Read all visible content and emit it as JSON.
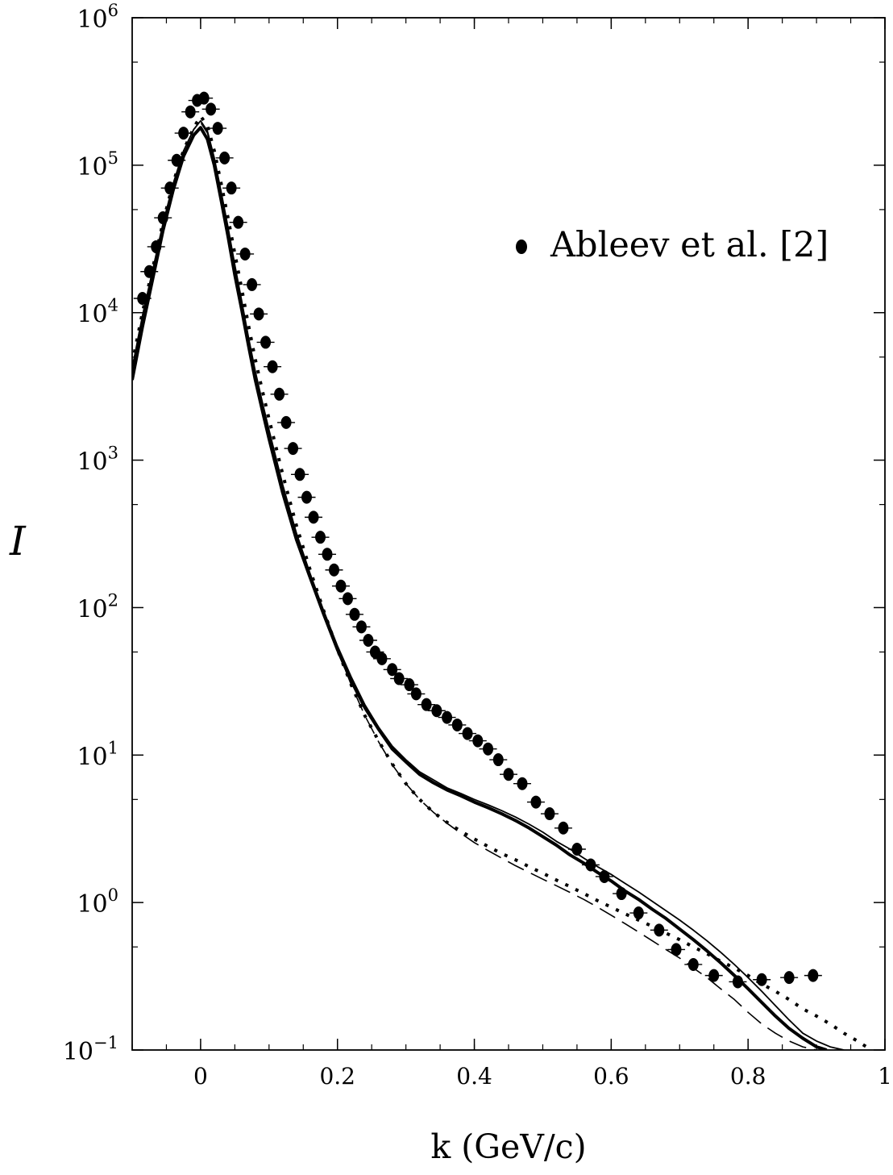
{
  "chart_data": {
    "type": "line",
    "title": "",
    "xlabel": "k (GeV/c)",
    "ylabel": "I",
    "xlim": [
      -0.1,
      1.0
    ],
    "ylim": [
      0.1,
      1000000
    ],
    "yscale": "log",
    "x_ticks": [
      {
        "value": 0,
        "label": "0"
      },
      {
        "value": 0.2,
        "label": "0.2"
      },
      {
        "value": 0.4,
        "label": "0.4"
      },
      {
        "value": 0.6,
        "label": "0.6"
      },
      {
        "value": 0.8,
        "label": "0.8"
      },
      {
        "value": 1.0,
        "label": "1"
      }
    ],
    "y_ticks": [
      {
        "exp": -1,
        "base": "10",
        "sup": "−1"
      },
      {
        "exp": 0,
        "base": "10",
        "sup": "0"
      },
      {
        "exp": 1,
        "base": "10",
        "sup": "1"
      },
      {
        "exp": 2,
        "base": "10",
        "sup": "2"
      },
      {
        "exp": 3,
        "base": "10",
        "sup": "3"
      },
      {
        "exp": 4,
        "base": "10",
        "sup": "4"
      },
      {
        "exp": 5,
        "base": "10",
        "sup": "5"
      },
      {
        "exp": 6,
        "base": "10",
        "sup": "6"
      }
    ],
    "legend": {
      "position": "top-right",
      "entries": [
        {
          "label": "Ableev et al. [2]",
          "marker": "filled-circle"
        }
      ]
    },
    "grid": false,
    "series": [
      {
        "name": "Ableev et al. [2]",
        "style": "points",
        "x": [
          -0.085,
          -0.075,
          -0.065,
          -0.055,
          -0.045,
          -0.035,
          -0.025,
          -0.015,
          -0.005,
          0.005,
          0.015,
          0.025,
          0.035,
          0.045,
          0.055,
          0.065,
          0.075,
          0.085,
          0.095,
          0.105,
          0.115,
          0.125,
          0.135,
          0.145,
          0.155,
          0.165,
          0.175,
          0.185,
          0.195,
          0.205,
          0.215,
          0.225,
          0.235,
          0.245,
          0.255,
          0.265,
          0.28,
          0.29,
          0.305,
          0.315,
          0.33,
          0.345,
          0.36,
          0.375,
          0.39,
          0.405,
          0.42,
          0.435,
          0.45,
          0.47,
          0.49,
          0.51,
          0.53,
          0.55,
          0.57,
          0.59,
          0.615,
          0.64,
          0.67,
          0.695,
          0.72,
          0.75,
          0.785,
          0.82,
          0.86,
          0.895
        ],
        "y": [
          12500,
          19000,
          28000,
          44000,
          70000,
          108000,
          165000,
          230000,
          275000,
          285000,
          240000,
          178000,
          112000,
          70000,
          41000,
          25000,
          15500,
          9800,
          6300,
          4300,
          2800,
          1800,
          1200,
          800,
          560,
          410,
          300,
          230,
          180,
          140,
          115,
          90,
          74,
          60,
          50,
          45,
          38,
          33,
          30,
          26,
          22,
          20,
          18,
          16,
          14,
          12.5,
          11,
          9.3,
          7.4,
          6.4,
          4.8,
          4.0,
          3.2,
          2.3,
          1.8,
          1.5,
          1.15,
          0.85,
          0.65,
          0.48,
          0.38,
          0.32,
          0.29,
          0.3,
          0.31,
          0.32
        ]
      },
      {
        "name": "",
        "style": "thick-solid",
        "x": [
          -0.1,
          -0.085,
          -0.07,
          -0.055,
          -0.04,
          -0.025,
          -0.01,
          0,
          0.01,
          0.02,
          0.03,
          0.04,
          0.05,
          0.06,
          0.07,
          0.08,
          0.09,
          0.1,
          0.12,
          0.14,
          0.16,
          0.18,
          0.2,
          0.22,
          0.24,
          0.26,
          0.28,
          0.3,
          0.32,
          0.34,
          0.36,
          0.38,
          0.4,
          0.42,
          0.44,
          0.46,
          0.48,
          0.5,
          0.52,
          0.54,
          0.56,
          0.58,
          0.6,
          0.62,
          0.64,
          0.66,
          0.68,
          0.7,
          0.72,
          0.74,
          0.76,
          0.78,
          0.8,
          0.82,
          0.84,
          0.86,
          0.88,
          0.9,
          0.915
        ],
        "y": [
          3500,
          8000,
          17000,
          36000,
          68000,
          115000,
          160000,
          180000,
          150000,
          100000,
          58000,
          33000,
          18000,
          10500,
          6000,
          3500,
          2200,
          1400,
          600,
          290,
          160,
          90,
          52,
          32,
          21,
          15,
          11,
          9.0,
          7.4,
          6.5,
          5.8,
          5.3,
          4.8,
          4.4,
          4.0,
          3.6,
          3.2,
          2.8,
          2.45,
          2.1,
          1.85,
          1.6,
          1.4,
          1.2,
          1.05,
          0.9,
          0.78,
          0.66,
          0.56,
          0.47,
          0.39,
          0.32,
          0.26,
          0.21,
          0.17,
          0.14,
          0.12,
          0.105,
          0.1
        ]
      },
      {
        "name": "",
        "style": "thin-solid",
        "x": [
          -0.1,
          -0.085,
          -0.07,
          -0.055,
          -0.04,
          -0.025,
          -0.01,
          0,
          0.01,
          0.02,
          0.03,
          0.04,
          0.05,
          0.06,
          0.07,
          0.08,
          0.09,
          0.1,
          0.12,
          0.14,
          0.16,
          0.18,
          0.2,
          0.22,
          0.24,
          0.26,
          0.28,
          0.3,
          0.32,
          0.34,
          0.36,
          0.38,
          0.4,
          0.42,
          0.44,
          0.46,
          0.48,
          0.5,
          0.52,
          0.54,
          0.56,
          0.58,
          0.6,
          0.62,
          0.64,
          0.66,
          0.68,
          0.7,
          0.72,
          0.74,
          0.76,
          0.78,
          0.8,
          0.82,
          0.84,
          0.86,
          0.88,
          0.9,
          0.92,
          0.94
        ],
        "y": [
          4200,
          9500,
          19500,
          40000,
          75000,
          125000,
          175000,
          200000,
          170000,
          112000,
          66000,
          38000,
          21000,
          12000,
          6800,
          4000,
          2500,
          1600,
          680,
          320,
          170,
          95,
          55,
          34,
          22,
          15.5,
          11.5,
          9.3,
          7.7,
          6.8,
          6.0,
          5.5,
          5.0,
          4.6,
          4.2,
          3.8,
          3.4,
          3.0,
          2.6,
          2.3,
          2.0,
          1.75,
          1.55,
          1.35,
          1.18,
          1.02,
          0.88,
          0.76,
          0.65,
          0.55,
          0.46,
          0.38,
          0.31,
          0.25,
          0.2,
          0.16,
          0.13,
          0.115,
          0.105,
          0.1
        ]
      },
      {
        "name": "",
        "style": "dotted",
        "x": [
          -0.1,
          -0.085,
          -0.07,
          -0.055,
          -0.04,
          -0.025,
          -0.01,
          0,
          0.01,
          0.02,
          0.03,
          0.04,
          0.05,
          0.06,
          0.07,
          0.08,
          0.09,
          0.1,
          0.12,
          0.14,
          0.16,
          0.18,
          0.2,
          0.22,
          0.24,
          0.26,
          0.28,
          0.3,
          0.32,
          0.34,
          0.36,
          0.38,
          0.4,
          0.42,
          0.44,
          0.46,
          0.48,
          0.5,
          0.52,
          0.54,
          0.56,
          0.58,
          0.6,
          0.62,
          0.64,
          0.66,
          0.68,
          0.7,
          0.72,
          0.74,
          0.76,
          0.78,
          0.8,
          0.82,
          0.84,
          0.86,
          0.88,
          0.9,
          0.92,
          0.94,
          0.96,
          0.98
        ],
        "y": [
          4500,
          10000,
          20000,
          41000,
          76000,
          126000,
          180000,
          215000,
          185000,
          125000,
          75000,
          44000,
          25000,
          14500,
          8200,
          4800,
          3000,
          1900,
          800,
          360,
          180,
          95,
          52,
          30,
          18.5,
          12.5,
          8.7,
          6.4,
          5.0,
          4.1,
          3.5,
          3.05,
          2.7,
          2.4,
          2.15,
          1.95,
          1.75,
          1.58,
          1.42,
          1.28,
          1.15,
          1.03,
          0.93,
          0.84,
          0.76,
          0.69,
          0.62,
          0.56,
          0.5,
          0.45,
          0.4,
          0.36,
          0.32,
          0.28,
          0.25,
          0.22,
          0.19,
          0.17,
          0.15,
          0.13,
          0.115,
          0.1
        ]
      },
      {
        "name": "",
        "style": "dashed",
        "x": [
          -0.1,
          -0.085,
          -0.07,
          -0.055,
          -0.04,
          -0.025,
          -0.01,
          0,
          0.01,
          0.02,
          0.03,
          0.04,
          0.05,
          0.06,
          0.07,
          0.08,
          0.09,
          0.1,
          0.12,
          0.14,
          0.16,
          0.18,
          0.2,
          0.22,
          0.24,
          0.26,
          0.28,
          0.3,
          0.32,
          0.34,
          0.36,
          0.38,
          0.4,
          0.42,
          0.44,
          0.46,
          0.48,
          0.5,
          0.52,
          0.54,
          0.56,
          0.58,
          0.6,
          0.62,
          0.64,
          0.66,
          0.68,
          0.7,
          0.72,
          0.74,
          0.76,
          0.78,
          0.8,
          0.82,
          0.84,
          0.86,
          0.88,
          0.9,
          0.915
        ],
        "y": [
          4200,
          9500,
          19500,
          40000,
          75000,
          125000,
          175000,
          195000,
          165000,
          108000,
          64000,
          37000,
          20500,
          11800,
          6700,
          3900,
          2450,
          1550,
          660,
          310,
          165,
          92,
          52,
          30,
          18.5,
          12.3,
          8.6,
          6.4,
          5.0,
          4.1,
          3.45,
          2.95,
          2.55,
          2.25,
          2.0,
          1.78,
          1.6,
          1.44,
          1.3,
          1.17,
          1.05,
          0.93,
          0.82,
          0.72,
          0.63,
          0.55,
          0.48,
          0.42,
          0.36,
          0.31,
          0.26,
          0.22,
          0.18,
          0.15,
          0.13,
          0.115,
          0.105,
          0.1,
          0.095
        ]
      }
    ]
  }
}
